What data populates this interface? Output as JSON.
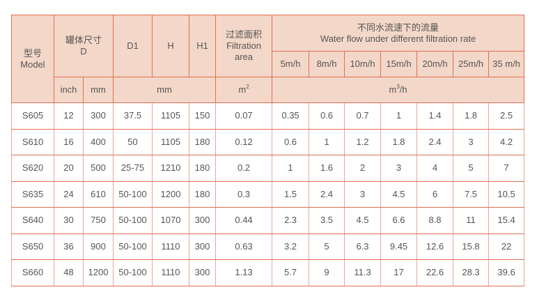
{
  "header": {
    "model": {
      "zh": "型号",
      "en": "Model"
    },
    "tank_size": {
      "zh": "罐体尺寸",
      "en": "D"
    },
    "d1": "D1",
    "h": "H",
    "h1": "H1",
    "filtration_area": {
      "zh": "过滤面积",
      "en1": "Filtration",
      "en2": "area"
    },
    "flow": {
      "zh": "不同水流速下的流量",
      "en": "Water flow under different filtration rate"
    },
    "rates": [
      "5m/h",
      "8m/h",
      "10m/h",
      "15m/h",
      "20m/h",
      "25m/h",
      "35 m/h"
    ],
    "units": {
      "inch": "inch",
      "mm": "mm",
      "dims_mm": "mm",
      "area_base": "m",
      "area_exp": "2",
      "flow_base": "m",
      "flow_exp": "3",
      "flow_suffix": "/h"
    }
  },
  "colors": {
    "header_bg": "#f3d7c8",
    "border": "#e0704f"
  },
  "rows": [
    [
      "S605",
      "12",
      "300",
      "37.5",
      "1105",
      "150",
      "0.07",
      "0.35",
      "0.6",
      "0.7",
      "1",
      "1.4",
      "1.8",
      "2.5"
    ],
    [
      "S610",
      "16",
      "400",
      "50",
      "1105",
      "180",
      "0.12",
      "0.6",
      "1",
      "1.2",
      "1.8",
      "2.4",
      "3",
      "4.2"
    ],
    [
      "S620",
      "20",
      "500",
      "25-75",
      "1210",
      "180",
      "0.2",
      "1",
      "1.6",
      "2",
      "3",
      "4",
      "5",
      "7"
    ],
    [
      "S635",
      "24",
      "610",
      "50-100",
      "1200",
      "180",
      "0.3",
      "1.5",
      "2.4",
      "3",
      "4.5",
      "6",
      "7.5",
      "10.5"
    ],
    [
      "S640",
      "30",
      "750",
      "50-100",
      "1070",
      "300",
      "0.44",
      "2.3",
      "3.5",
      "4.5",
      "6.6",
      "8.8",
      "11",
      "15.4"
    ],
    [
      "S650",
      "36",
      "900",
      "50-100",
      "1110",
      "300",
      "0.63",
      "3.2",
      "5",
      "6.3",
      "9.45",
      "12.6",
      "15.8",
      "22"
    ],
    [
      "S660",
      "48",
      "1200",
      "50-100",
      "1110",
      "300",
      "1.13",
      "5.7",
      "9",
      "11.3",
      "17",
      "22.6",
      "28.3",
      "39.6"
    ]
  ]
}
